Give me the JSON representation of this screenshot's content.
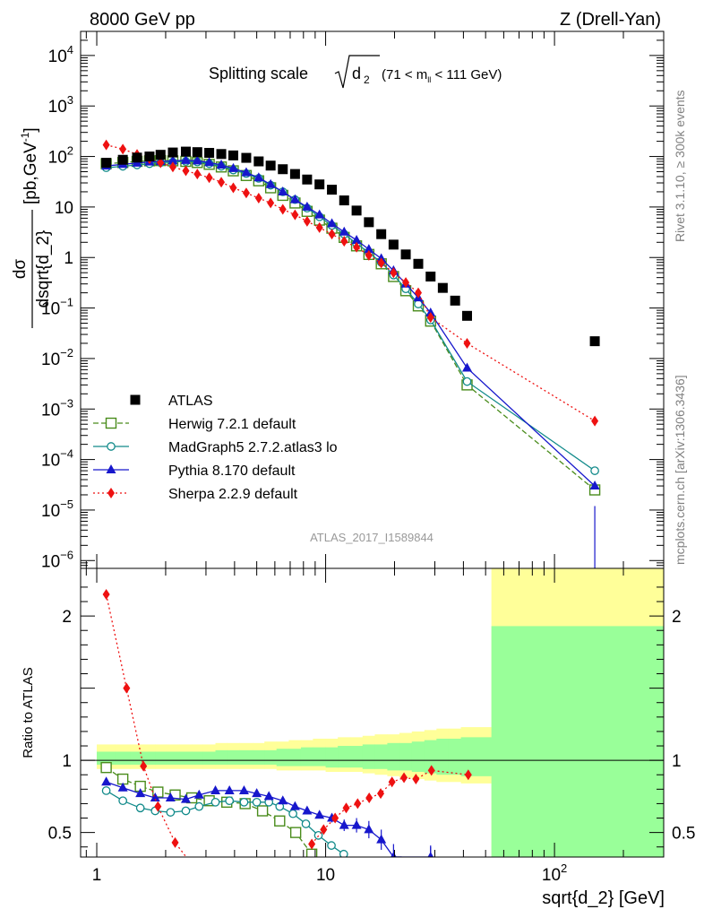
{
  "header": {
    "left": "8000 GeV pp",
    "right": "Z (Drell-Yan)"
  },
  "side_labels": {
    "rivet": "Rivet 3.1.10, ≥ 300k events",
    "mcplots": "mcplots.cern.ch [arXiv:1306.3436]"
  },
  "plot_title": {
    "main": "Splitting scale",
    "var": "d",
    "var_sub": "2",
    "range_pre": "(71 < m",
    "range_sub": "ll",
    "range_post": " < 111 GeV)"
  },
  "watermark": "ATLAS_2017_I1589844",
  "chart_data": {
    "type": "line",
    "xscale": "log",
    "xlim": [
      0.85,
      300
    ],
    "xlabel": "sqrt{d_2} [GeV]",
    "main_panel": {
      "yscale": "log",
      "ylim": [
        7e-07,
        30000
      ],
      "ylabel": {
        "num": "dσ",
        "den": "dsqrt{d_2}",
        "units": "[pb,GeV",
        "units_sup": "-1",
        "units_end": "]"
      },
      "yticks": [
        {
          "v": 10000.0,
          "mant": "10",
          "exp": "4"
        },
        {
          "v": 1000.0,
          "mant": "10",
          "exp": "3"
        },
        {
          "v": 100.0,
          "mant": "10",
          "exp": "2"
        },
        {
          "v": 10,
          "mant": "10",
          "exp": ""
        },
        {
          "v": 1,
          "mant": "1",
          "exp": ""
        },
        {
          "v": 0.1,
          "mant": "10",
          "exp": "−1"
        },
        {
          "v": 0.01,
          "mant": "10",
          "exp": "−2"
        },
        {
          "v": 0.001,
          "mant": "10",
          "exp": "−3"
        },
        {
          "v": 0.0001,
          "mant": "10",
          "exp": "−4"
        },
        {
          "v": 1e-05,
          "mant": "10",
          "exp": "−5"
        },
        {
          "v": 1e-06,
          "mant": "10",
          "exp": "−6"
        }
      ]
    },
    "ratio_panel": {
      "yscale": "linear",
      "ylim": [
        0.33,
        2.33
      ],
      "ylabel": "Ratio to ATLAS",
      "yticks": [
        {
          "v": 0.5,
          "label": "0.5"
        },
        {
          "v": 1,
          "label": "1"
        },
        {
          "v": 2,
          "label": "2"
        }
      ],
      "band_edges": [
        1.0,
        1.2,
        1.4,
        1.6,
        1.8,
        2.0,
        2.3,
        2.6,
        2.9,
        3.3,
        3.7,
        4.2,
        4.8,
        5.4,
        6.1,
        6.9,
        7.8,
        8.8,
        10.0,
        11.3,
        12.8,
        14.5,
        16.4,
        18.6,
        21.0,
        23.8,
        27.0,
        30.5,
        34.5,
        39.0,
        53.0,
        300.0
      ],
      "band_outer": [
        [
          0.94,
          1.11
        ],
        [
          0.94,
          1.11
        ],
        [
          0.94,
          1.11
        ],
        [
          0.94,
          1.11
        ],
        [
          0.94,
          1.11
        ],
        [
          0.94,
          1.11
        ],
        [
          0.94,
          1.11
        ],
        [
          0.94,
          1.11
        ],
        [
          0.94,
          1.11
        ],
        [
          0.94,
          1.12
        ],
        [
          0.94,
          1.12
        ],
        [
          0.94,
          1.12
        ],
        [
          0.94,
          1.12
        ],
        [
          0.94,
          1.13
        ],
        [
          0.93,
          1.13
        ],
        [
          0.93,
          1.14
        ],
        [
          0.93,
          1.14
        ],
        [
          0.93,
          1.15
        ],
        [
          0.92,
          1.15
        ],
        [
          0.92,
          1.16
        ],
        [
          0.92,
          1.16
        ],
        [
          0.91,
          1.17
        ],
        [
          0.9,
          1.18
        ],
        [
          0.89,
          1.18
        ],
        [
          0.88,
          1.19
        ],
        [
          0.87,
          1.2
        ],
        [
          0.86,
          1.21
        ],
        [
          0.85,
          1.22
        ],
        [
          0.85,
          1.22
        ],
        [
          0.84,
          1.23
        ],
        [
          0.0,
          2.45
        ]
      ],
      "band_inner": [
        [
          0.97,
          1.06
        ],
        [
          0.97,
          1.06
        ],
        [
          0.97,
          1.06
        ],
        [
          0.97,
          1.06
        ],
        [
          0.97,
          1.06
        ],
        [
          0.97,
          1.06
        ],
        [
          0.97,
          1.06
        ],
        [
          0.97,
          1.06
        ],
        [
          0.97,
          1.06
        ],
        [
          0.97,
          1.07
        ],
        [
          0.97,
          1.07
        ],
        [
          0.97,
          1.07
        ],
        [
          0.97,
          1.07
        ],
        [
          0.97,
          1.07
        ],
        [
          0.96,
          1.08
        ],
        [
          0.96,
          1.08
        ],
        [
          0.96,
          1.09
        ],
        [
          0.96,
          1.09
        ],
        [
          0.95,
          1.09
        ],
        [
          0.95,
          1.1
        ],
        [
          0.95,
          1.1
        ],
        [
          0.94,
          1.11
        ],
        [
          0.94,
          1.11
        ],
        [
          0.93,
          1.12
        ],
        [
          0.93,
          1.12
        ],
        [
          0.92,
          1.13
        ],
        [
          0.91,
          1.14
        ],
        [
          0.9,
          1.15
        ],
        [
          0.9,
          1.15
        ],
        [
          0.89,
          1.16
        ],
        [
          0.0,
          1.93
        ]
      ]
    },
    "x": [
      1.1,
      1.3,
      1.5,
      1.7,
      1.9,
      2.15,
      2.45,
      2.75,
      3.1,
      3.5,
      3.95,
      4.5,
      5.1,
      5.75,
      6.5,
      7.35,
      8.3,
      9.4,
      10.65,
      12.05,
      13.65,
      15.45,
      17.5,
      19.8,
      22.4,
      25.4,
      28.75,
      32.5,
      36.8,
      41.5,
      150.0
    ],
    "series": [
      {
        "name": "ATLAS",
        "type": "data",
        "color": "#000000",
        "marker": "square",
        "dash": "",
        "values": [
          75,
          86,
          95,
          100,
          108,
          120,
          125,
          122,
          118,
          112,
          105,
          94,
          80,
          66,
          56,
          45,
          35,
          28,
          22,
          13.5,
          8.5,
          5.0,
          2.9,
          1.8,
          1.15,
          0.75,
          0.42,
          0.25,
          0.14,
          0.07,
          0.022
        ],
        "ratio": [],
        "ratio_err": []
      },
      {
        "name": "Herwig 7.2.1 default",
        "type": "mc",
        "color": "#4a8c1c",
        "marker": "open-square",
        "dash": "6,3",
        "main_x": [
          1.1,
          1.3,
          1.5,
          1.7,
          1.9,
          2.15,
          2.45,
          2.75,
          3.1,
          3.5,
          3.95,
          4.5,
          5.1,
          5.75,
          6.5,
          7.35,
          8.3,
          9.4,
          10.65,
          12.05,
          13.65,
          15.45,
          17.5,
          19.8,
          22.4,
          25.4,
          28.75,
          41.5,
          150.0
        ],
        "main_y": [
          72,
          76,
          80,
          82,
          83,
          82,
          80,
          76,
          70,
          62,
          52,
          42,
          33,
          24,
          17,
          12,
          8.2,
          5.5,
          3.8,
          2.5,
          1.7,
          1.15,
          0.75,
          0.42,
          0.22,
          0.11,
          0.055,
          0.003,
          2.5e-05
        ],
        "ratio_x": [
          1.1,
          1.3,
          1.55,
          1.85,
          2.2,
          2.6,
          3.1,
          3.7,
          4.45,
          5.3,
          6.3,
          7.4,
          8.7
        ],
        "ratio": [
          0.95,
          0.87,
          0.82,
          0.78,
          0.76,
          0.74,
          0.72,
          0.71,
          0.7,
          0.65,
          0.58,
          0.5,
          0.35
        ],
        "ratio_err": []
      },
      {
        "name": "MadGraph5 2.7.2.atlas3 lo",
        "type": "mc",
        "color": "#118a8a",
        "marker": "open-circle",
        "dash": "",
        "main_x": [
          1.1,
          1.3,
          1.5,
          1.7,
          1.9,
          2.15,
          2.45,
          2.75,
          3.1,
          3.5,
          3.95,
          4.5,
          5.1,
          5.75,
          6.5,
          7.35,
          8.3,
          9.4,
          10.65,
          12.05,
          13.65,
          15.45,
          17.5,
          19.8,
          22.4,
          25.4,
          28.75,
          41.5,
          150.0
        ],
        "main_y": [
          60,
          64,
          68,
          72,
          76,
          78,
          80,
          78,
          72,
          64,
          54,
          46,
          37,
          27,
          20,
          14,
          9.5,
          6.4,
          4.3,
          2.9,
          1.9,
          1.25,
          0.8,
          0.45,
          0.24,
          0.12,
          0.058,
          0.0035,
          6e-05
        ],
        "ratio_x": [
          1.1,
          1.3,
          1.55,
          1.8,
          2.1,
          2.45,
          2.8,
          3.3,
          3.8,
          4.4,
          5.0,
          5.65,
          6.3,
          7.2,
          8.2,
          9.3,
          10.6,
          12.0
        ],
        "ratio": [
          0.79,
          0.72,
          0.67,
          0.65,
          0.64,
          0.65,
          0.68,
          0.71,
          0.72,
          0.71,
          0.71,
          0.71,
          0.68,
          0.63,
          0.56,
          0.48,
          0.41,
          0.35
        ],
        "ratio_err": []
      },
      {
        "name": "Pythia 8.170 default",
        "type": "mc",
        "color": "#1717cc",
        "marker": "filled-triangle",
        "dash": "",
        "main_x": [
          1.1,
          1.3,
          1.5,
          1.7,
          1.9,
          2.15,
          2.45,
          2.75,
          3.1,
          3.5,
          3.95,
          4.5,
          5.1,
          5.75,
          6.5,
          7.35,
          8.3,
          9.4,
          10.65,
          12.05,
          13.65,
          15.45,
          17.5,
          19.8,
          22.4,
          25.4,
          28.75,
          41.5,
          150.0
        ],
        "main_y": [
          65,
          70,
          74,
          78,
          80,
          82,
          84,
          82,
          76,
          68,
          58,
          48,
          38,
          28,
          20,
          14,
          10,
          7.0,
          4.7,
          3.2,
          2.2,
          1.45,
          0.95,
          0.55,
          0.3,
          0.16,
          0.08,
          0.0065,
          3e-05
        ],
        "ratio_x": [
          1.1,
          1.3,
          1.55,
          1.8,
          2.1,
          2.45,
          2.8,
          3.3,
          3.8,
          4.4,
          5.0,
          5.65,
          6.5,
          7.35,
          8.3,
          9.4,
          10.65,
          12.05,
          13.65,
          15.45,
          17.5,
          19.8,
          28.75
        ],
        "ratio": [
          0.85,
          0.81,
          0.77,
          0.74,
          0.74,
          0.73,
          0.76,
          0.79,
          0.79,
          0.79,
          0.77,
          0.75,
          0.72,
          0.68,
          0.65,
          0.62,
          0.6,
          0.55,
          0.55,
          0.52,
          0.45,
          0.33,
          0.33
        ],
        "ratio_err": [
          0,
          0,
          0,
          0,
          0,
          0,
          0,
          0,
          0,
          0,
          0.01,
          0.01,
          0.01,
          0.02,
          0.02,
          0.02,
          0.03,
          0.04,
          0.05,
          0.06,
          0.07,
          0.09,
          0.08
        ]
      },
      {
        "name": "Sherpa 2.2.9 default",
        "type": "mc",
        "color": "#ee1111",
        "marker": "filled-diamond",
        "dash": "2,3",
        "main_x": [
          1.1,
          1.3,
          1.5,
          1.7,
          1.9,
          2.15,
          2.45,
          2.75,
          3.1,
          3.5,
          3.95,
          4.5,
          5.1,
          5.75,
          6.5,
          7.35,
          8.3,
          9.4,
          10.65,
          12.05,
          13.65,
          15.45,
          17.5,
          19.8,
          22.4,
          25.4,
          28.75,
          41.5,
          150.0
        ],
        "main_y": [
          170,
          140,
          110,
          90,
          75,
          62,
          52,
          45,
          38,
          31,
          24,
          19,
          15,
          12,
          9,
          7,
          5.2,
          3.9,
          2.9,
          2.1,
          1.6,
          1.1,
          0.78,
          0.5,
          0.32,
          0.2,
          0.065,
          0.02,
          0.00058
        ],
        "ratio_x": [
          1.1,
          1.35,
          1.6,
          1.85,
          2.2,
          2.6,
          3.1
        ],
        "ratio": [
          2.15,
          1.5,
          0.96,
          0.68,
          0.43,
          0.28,
          0.15
        ],
        "ratio_x2": [
          8.7,
          9.8,
          11.0,
          12.3,
          13.8,
          15.5,
          17.4,
          19.5,
          22.0,
          24.8,
          29.0,
          42.0
        ],
        "ratio2": [
          0.42,
          0.52,
          0.6,
          0.67,
          0.7,
          0.74,
          0.77,
          0.85,
          0.88,
          0.87,
          0.93,
          0.9
        ],
        "ratio_err": []
      }
    ],
    "atlas_err_main": [
      0,
      0,
      0,
      0,
      0,
      0,
      0,
      0,
      0,
      0,
      0,
      0,
      0,
      0,
      0,
      0,
      0,
      0,
      0,
      0,
      0,
      0,
      0,
      0,
      0,
      0,
      0,
      0,
      0,
      0,
      0
    ],
    "pythia_last_err": [
      1.2e-05,
      3e-05
    ],
    "legend": [
      "ATLAS",
      "Herwig 7.2.1 default",
      "MadGraph5 2.7.2.atlas3 lo",
      "Pythia 8.170 default",
      "Sherpa 2.2.9 default"
    ],
    "legend_position": "bottom-left"
  }
}
